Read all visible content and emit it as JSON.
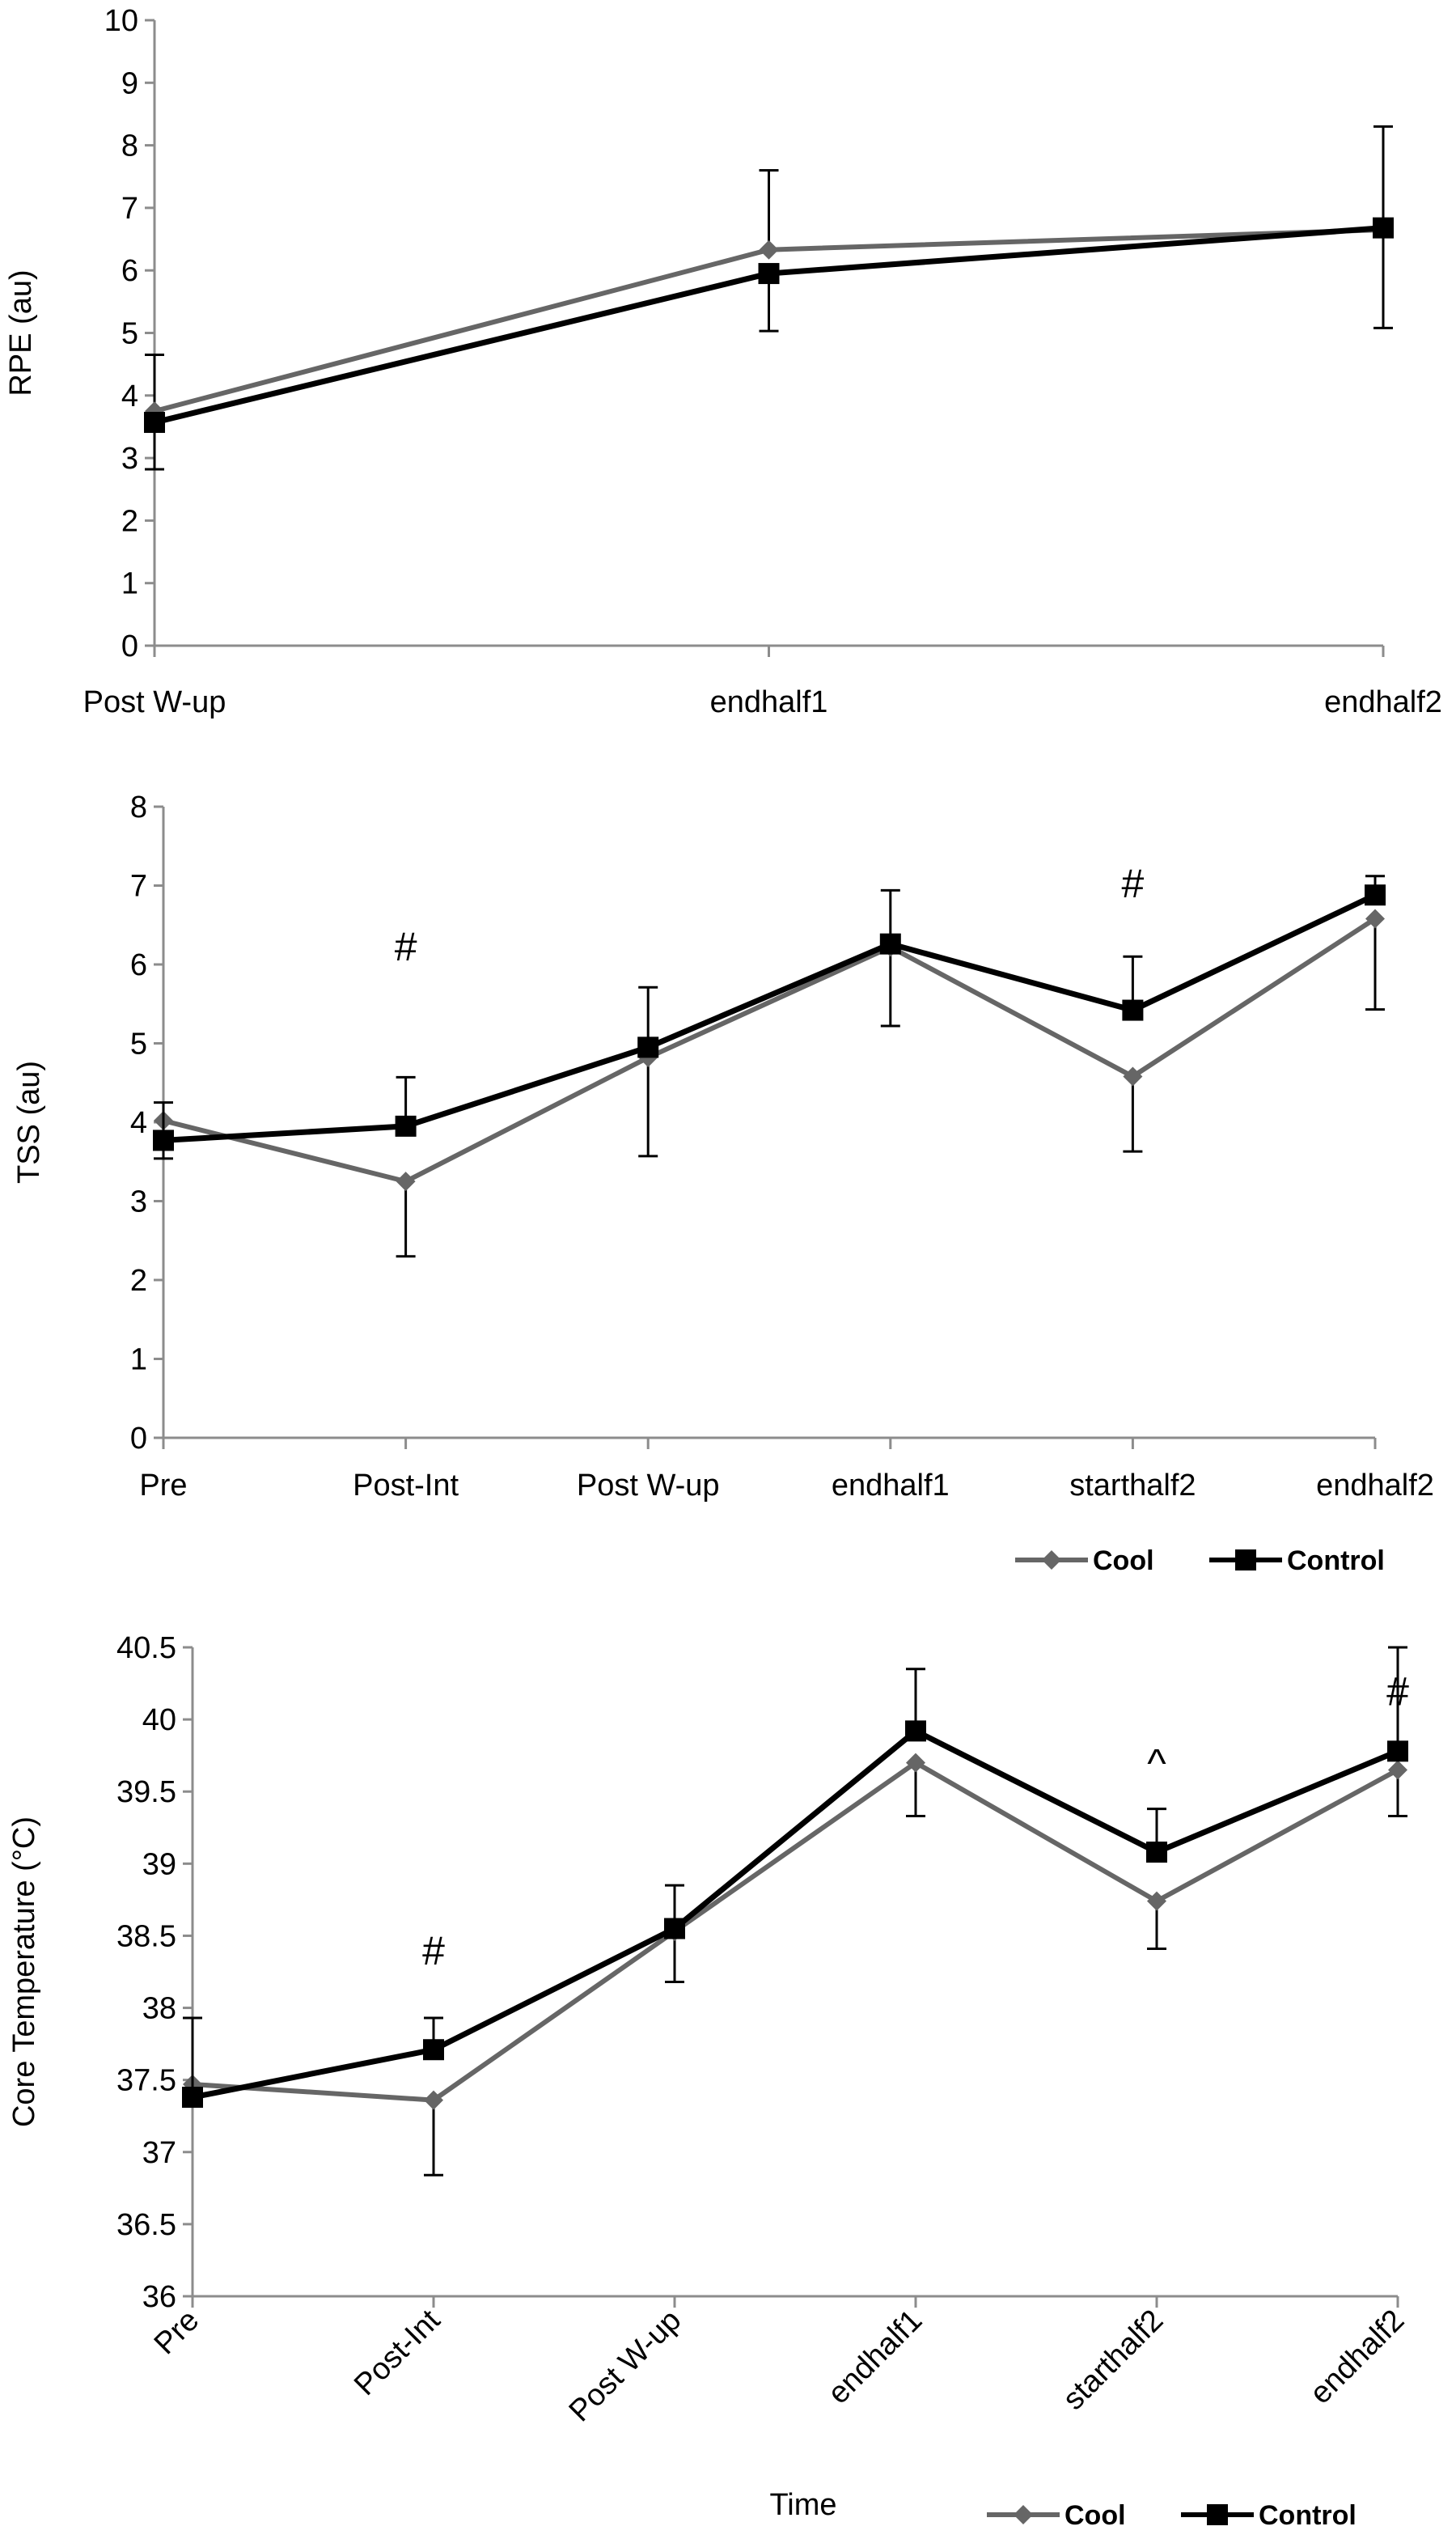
{
  "series_styles": {
    "Cool": {
      "color": "#666666",
      "marker": "diamond"
    },
    "Control": {
      "color": "#000000",
      "marker": "square"
    }
  },
  "chart_data": [
    {
      "type": "line",
      "title": "",
      "xlabel": "",
      "ylabel": "RPE (au)",
      "categories": [
        "Post W-up",
        "endhalf1",
        "endhalf2"
      ],
      "ylim": [
        0,
        10
      ],
      "yticks": [
        0,
        1,
        2,
        3,
        4,
        5,
        6,
        7,
        8,
        9,
        10
      ],
      "grid": false,
      "series": [
        {
          "name": "Cool",
          "values": [
            3.75,
            6.33,
            6.65
          ],
          "err_up": [
            0.9,
            1.27,
            1.65
          ],
          "err_down": [
            0,
            0,
            0
          ]
        },
        {
          "name": "Control",
          "values": [
            3.57,
            5.95,
            6.68
          ],
          "err_up": [
            0,
            0,
            0
          ],
          "err_down": [
            0.75,
            0.92,
            1.6
          ]
        }
      ],
      "annotations": []
    },
    {
      "type": "line",
      "title": "",
      "xlabel": "",
      "ylabel": "TSS (au)",
      "categories": [
        "Pre",
        "Post-Int",
        "Post W-up",
        "endhalf1",
        "starthalf2",
        "endhalf2"
      ],
      "ylim": [
        0,
        8
      ],
      "yticks": [
        0,
        1,
        2,
        3,
        4,
        5,
        6,
        7,
        8
      ],
      "grid": false,
      "legend_position": "bottom-right",
      "series": [
        {
          "name": "Cool",
          "values": [
            4.02,
            3.25,
            4.82,
            6.22,
            4.58,
            6.58
          ],
          "err_up": [
            0,
            0,
            0,
            0,
            0,
            0
          ],
          "err_down": [
            0.48,
            0.95,
            1.25,
            1.0,
            0.95,
            1.15
          ]
        },
        {
          "name": "Control",
          "values": [
            3.77,
            3.95,
            4.95,
            6.26,
            5.42,
            6.88
          ],
          "err_up": [
            0.48,
            0.62,
            0.76,
            0.68,
            0.68,
            0.24
          ],
          "err_down": [
            0,
            0,
            0,
            0,
            0,
            0
          ]
        }
      ],
      "annotations": [
        {
          "category": "Post-Int",
          "text": "#",
          "y": 6.05
        },
        {
          "category": "starthalf2",
          "text": "#",
          "y": 6.85
        }
      ]
    },
    {
      "type": "line",
      "title": "",
      "xlabel": "Time",
      "ylabel": "Core Temperature (°C)",
      "categories": [
        "Pre",
        "Post-Int",
        "Post W-up",
        "endhalf1",
        "starthalf2",
        "endhalf2"
      ],
      "ylim": [
        36,
        40.5
      ],
      "yticks": [
        36,
        36.5,
        37,
        37.5,
        38,
        38.5,
        39,
        39.5,
        40,
        40.5
      ],
      "grid": false,
      "legend_position": "bottom-right",
      "series": [
        {
          "name": "Cool",
          "values": [
            37.47,
            37.36,
            38.53,
            39.7,
            38.74,
            39.65
          ],
          "err_up": [
            0,
            0,
            0,
            0,
            0,
            0
          ],
          "err_down": [
            0,
            0.52,
            0.35,
            0.37,
            0.33,
            0.32
          ]
        },
        {
          "name": "Control",
          "values": [
            37.38,
            37.71,
            38.55,
            39.92,
            39.08,
            39.78
          ],
          "err_up": [
            0.55,
            0.22,
            0.3,
            0.43,
            0.3,
            0.72
          ],
          "err_down": [
            0,
            0,
            0,
            0,
            0,
            0
          ]
        }
      ],
      "annotations": [
        {
          "category": "Post-Int",
          "text": "#",
          "y": 38.3
        },
        {
          "category": "starthalf2",
          "text": "^",
          "y": 39.6
        },
        {
          "category": "endhalf2",
          "text": "#",
          "y": 40.1
        }
      ]
    }
  ]
}
